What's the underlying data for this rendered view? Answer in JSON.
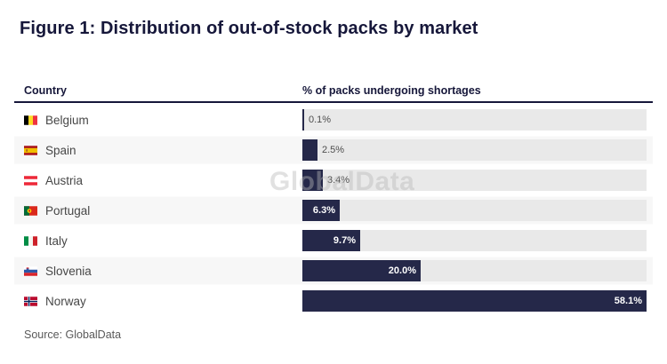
{
  "figure": {
    "title": "Figure 1: Distribution of out-of-stock packs by market",
    "source": "Source: GlobalData",
    "watermark": "GlobalData"
  },
  "table": {
    "country_header": "Country",
    "values_header": "% of packs undergoing shortages"
  },
  "chart_data": {
    "type": "bar",
    "orientation": "horizontal",
    "title": "Figure 1: Distribution of out-of-stock packs by market",
    "categories": [
      "Belgium",
      "Spain",
      "Austria",
      "Portugal",
      "Italy",
      "Slovenia",
      "Norway"
    ],
    "values": [
      0.1,
      2.5,
      3.4,
      6.3,
      9.7,
      20.0,
      58.1
    ],
    "value_labels": [
      "0.1%",
      "2.5%",
      "3.4%",
      "6.3%",
      "9.7%",
      "20.0%",
      "58.1%"
    ],
    "xlabel": "% of packs undergoing shortages",
    "ylabel": "Country",
    "xlim": [
      0,
      58.1
    ],
    "grid": false,
    "legend": "none",
    "bar_color": "#252849",
    "track_color": "#e9e9e9",
    "flag_icons": [
      "belgium-flag-icon",
      "spain-flag-icon",
      "austria-flag-icon",
      "portugal-flag-icon",
      "italy-flag-icon",
      "slovenia-flag-icon",
      "norway-flag-icon"
    ]
  },
  "colors": {
    "accent_navy": "#252849",
    "title_text": "#16173a",
    "row_stripe": "#f7f7f7",
    "track_gray": "#e9e9e9",
    "country_text": "#474747",
    "source_text": "#595959"
  }
}
